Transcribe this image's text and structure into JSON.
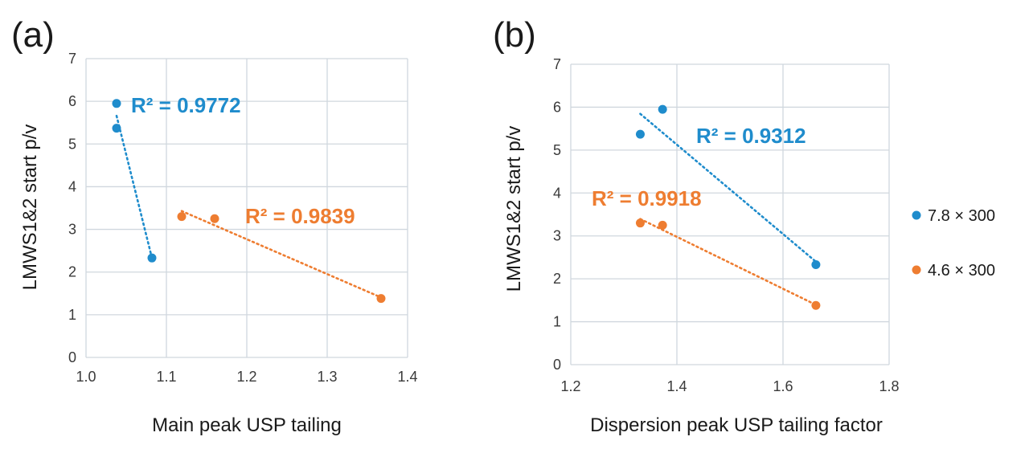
{
  "colors": {
    "blue": "#1f8ccc",
    "orange": "#ee7d31"
  },
  "legend": [
    {
      "label": "7.8 × 300",
      "color": "#1f8ccc"
    },
    {
      "label": "4.6 × 300",
      "color": "#ee7d31"
    }
  ],
  "chart_data": [
    {
      "type": "scatter",
      "panel_label": "(a)",
      "xlabel": "Main peak USP tailing",
      "ylabel": "LMWS1&2 start p/v",
      "xlim": [
        1.0,
        1.4
      ],
      "ylim": [
        0,
        7
      ],
      "xticks": [
        "1.0",
        "1.1",
        "1.2",
        "1.3",
        "1.4"
      ],
      "yticks": [
        "0",
        "1",
        "2",
        "3",
        "4",
        "5",
        "6",
        "7"
      ],
      "grid": true,
      "series": [
        {
          "name": "7.8 × 300",
          "color": "#1f8ccc",
          "x": [
            1.038,
            1.038,
            1.082
          ],
          "y": [
            5.95,
            5.37,
            2.33
          ],
          "trendline": {
            "type": "linear",
            "r2_label": "R² = 0.9772"
          }
        },
        {
          "name": "4.6 × 300",
          "color": "#ee7d31",
          "x": [
            1.119,
            1.16,
            1.367
          ],
          "y": [
            3.3,
            3.25,
            1.38
          ],
          "trendline": {
            "type": "linear",
            "r2_label": "R² = 0.9839"
          }
        }
      ]
    },
    {
      "type": "scatter",
      "panel_label": "(b)",
      "xlabel": "Dispersion peak USP tailing factor",
      "ylabel": "LMWS1&2 start p/v",
      "xlim": [
        1.2,
        1.8
      ],
      "ylim": [
        0,
        7
      ],
      "xticks": [
        "1.2",
        "1.4",
        "1.6",
        "1.8"
      ],
      "yticks": [
        "0",
        "1",
        "2",
        "3",
        "4",
        "5",
        "6",
        "7"
      ],
      "grid": true,
      "legend_position": "right",
      "series": [
        {
          "name": "7.8 × 300",
          "color": "#1f8ccc",
          "x": [
            1.373,
            1.331,
            1.662
          ],
          "y": [
            5.95,
            5.37,
            2.33
          ],
          "trendline": {
            "type": "linear",
            "r2_label": "R² = 0.9312"
          }
        },
        {
          "name": "4.6 × 300",
          "color": "#ee7d31",
          "x": [
            1.331,
            1.373,
            1.662
          ],
          "y": [
            3.3,
            3.25,
            1.38
          ],
          "trendline": {
            "type": "linear",
            "r2_label": "R² = 0.9918"
          }
        }
      ]
    }
  ]
}
